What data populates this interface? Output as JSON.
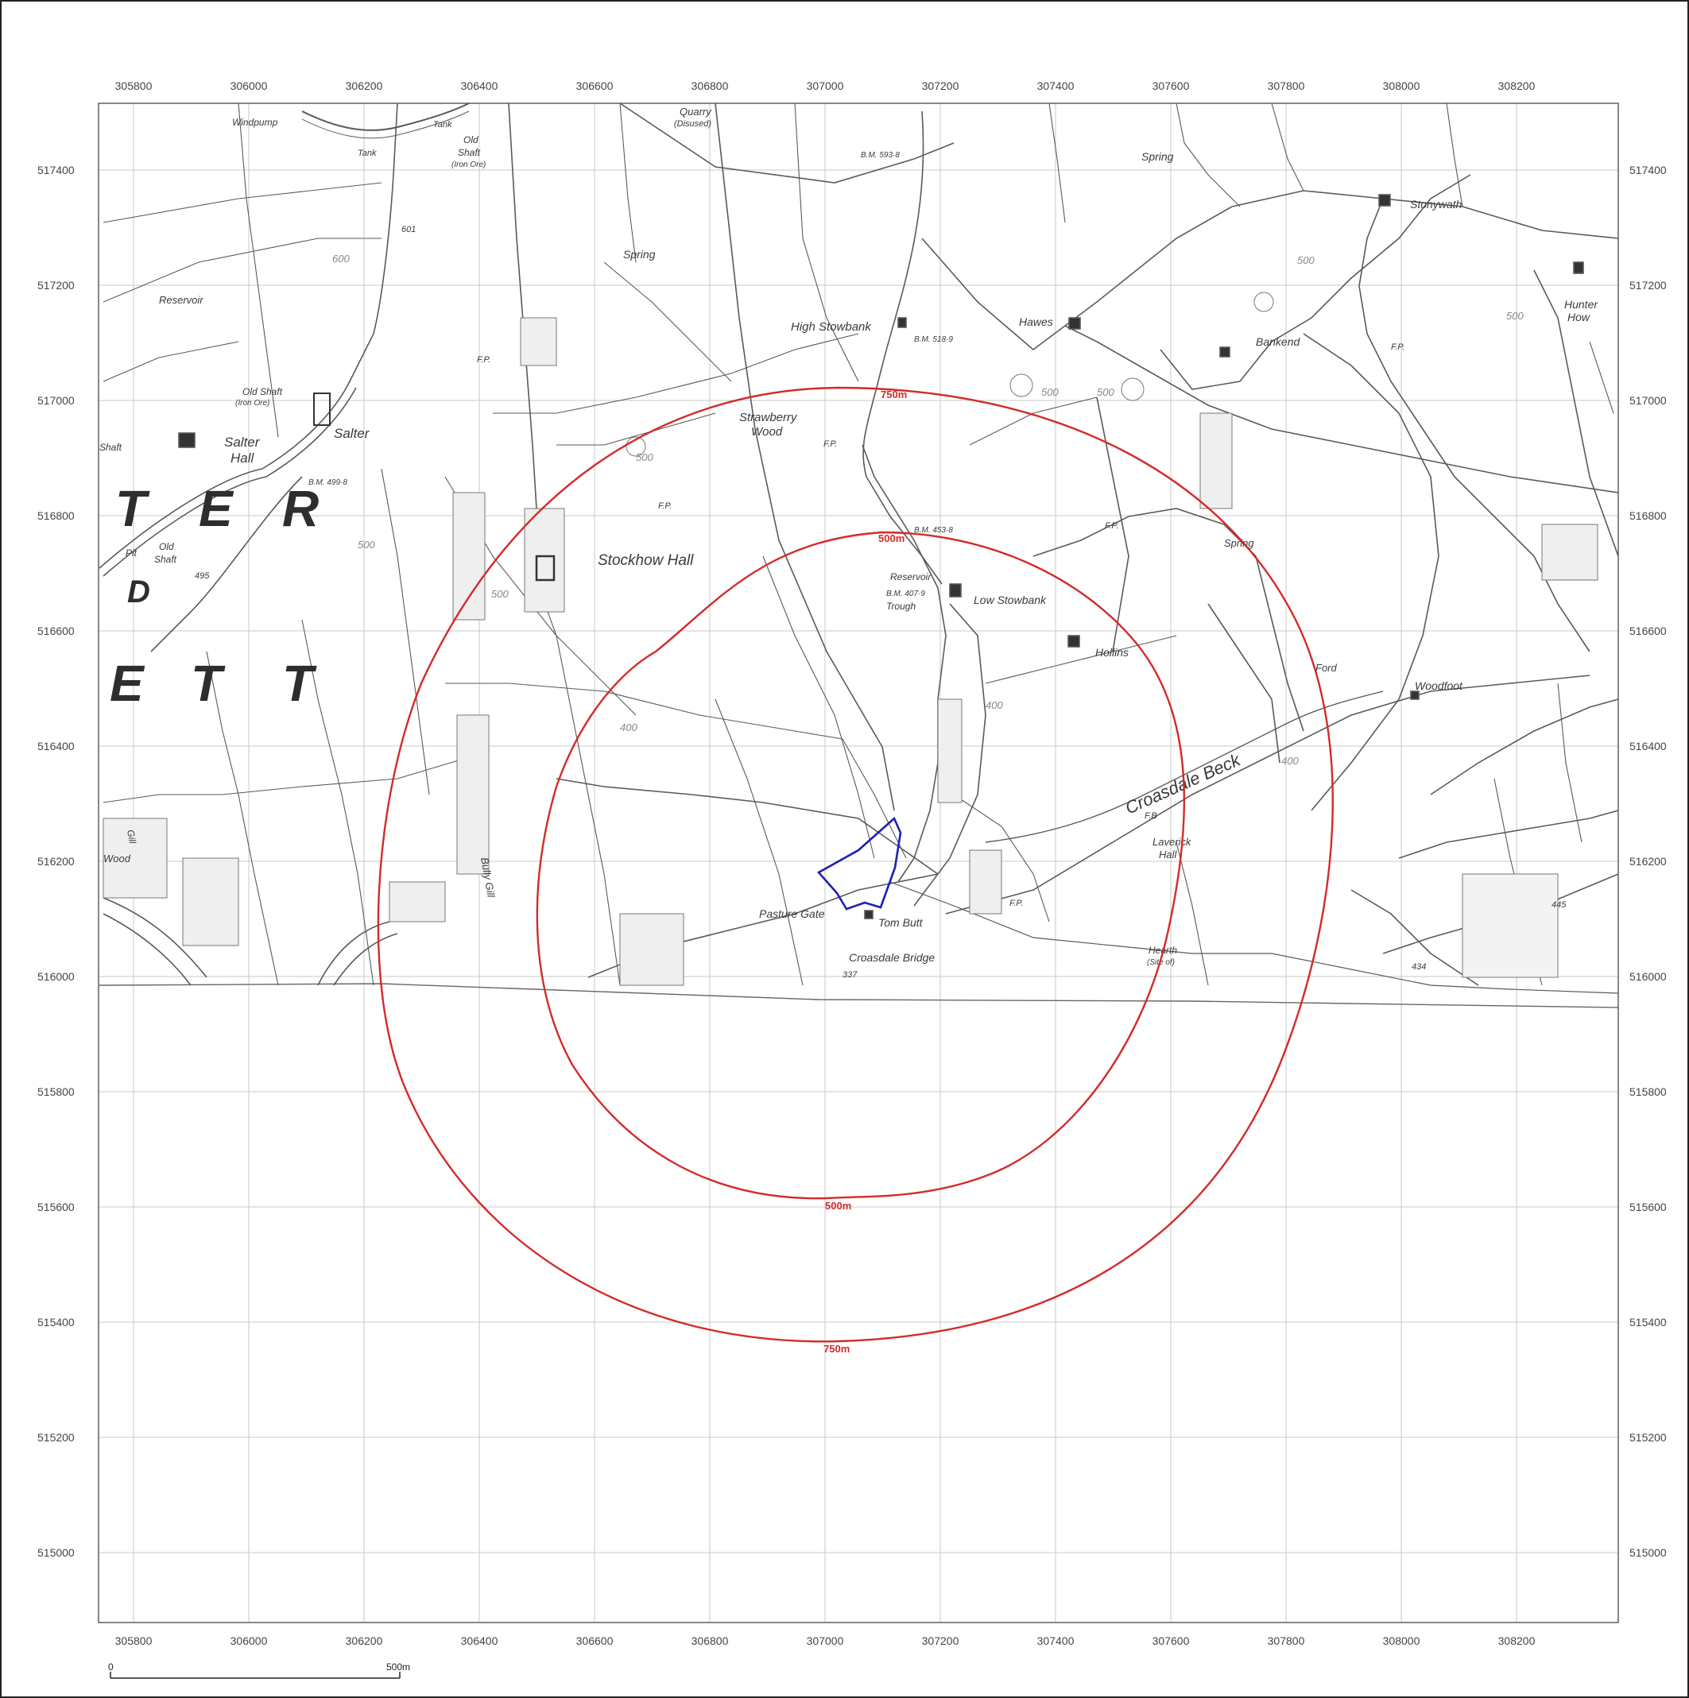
{
  "map": {
    "colors": {
      "grid": "#c8c8c8",
      "map_ink": "#5a5a5a",
      "buffer": "#d42a2a",
      "site_boundary": "#1f1fb4"
    },
    "eastings": [
      "305800",
      "306000",
      "306200",
      "306400",
      "306600",
      "306800",
      "307000",
      "307200",
      "307400",
      "307600",
      "307800",
      "308000",
      "308200"
    ],
    "northings": [
      "517400",
      "517200",
      "517000",
      "516800",
      "516600",
      "516400",
      "516200",
      "516000",
      "515800",
      "515600",
      "515400",
      "515200",
      "515000"
    ],
    "buffers": [
      {
        "label": "500m",
        "label_bottom": "500m",
        "radius_m": 500
      },
      {
        "label": "750m",
        "label_bottom": "750m",
        "radius_m": 750
      }
    ],
    "site": {
      "name": "site-boundary"
    },
    "scale_bar": {
      "start": "0",
      "end": "500m"
    },
    "place_labels": [
      {
        "key": "stockhow_hall",
        "text": "Stockhow Hall"
      },
      {
        "key": "low_stowbank",
        "text": "Low Stowbank"
      },
      {
        "key": "high_stowbank",
        "text": "High Stowbank"
      },
      {
        "key": "hawes",
        "text": "Hawes"
      },
      {
        "key": "bankend",
        "text": "Bankend"
      },
      {
        "key": "stonywath",
        "text": "Stonywath"
      },
      {
        "key": "hunter_how_1",
        "text": "Hunter"
      },
      {
        "key": "hunter_how_2",
        "text": "How"
      },
      {
        "key": "strawberry_1",
        "text": "Strawberry"
      },
      {
        "key": "strawberry_2",
        "text": "Wood"
      },
      {
        "key": "salter",
        "text": "Salter"
      },
      {
        "key": "salter_hall_1",
        "text": "Salter"
      },
      {
        "key": "salter_hall_2",
        "text": "Hall"
      },
      {
        "key": "hollins",
        "text": "Hollins"
      },
      {
        "key": "woodfoot",
        "text": "Woodfoot"
      },
      {
        "key": "ford",
        "text": "Ford"
      },
      {
        "key": "pasture_gate",
        "text": "Pasture Gate"
      },
      {
        "key": "tom_butt",
        "text": "Tom Butt"
      },
      {
        "key": "croasdale_bridge",
        "text": "Croasdale Bridge"
      },
      {
        "key": "croasdale_beck",
        "text": "Croasdale Beck"
      },
      {
        "key": "laverick_1",
        "text": "Laverick"
      },
      {
        "key": "laverick_2",
        "text": "Hall"
      },
      {
        "key": "spring_1",
        "text": "Spring"
      },
      {
        "key": "spring_2",
        "text": "Spring"
      },
      {
        "key": "spring_3",
        "text": "Spring"
      },
      {
        "key": "reservoir_1",
        "text": "Reservoir"
      },
      {
        "key": "reservoir_2",
        "text": "Reservoir"
      },
      {
        "key": "trough",
        "text": "Trough"
      },
      {
        "key": "quarry_1",
        "text": "Quarry"
      },
      {
        "key": "quarry_2",
        "text": "(Disused)"
      },
      {
        "key": "windpump",
        "text": "Windpump"
      },
      {
        "key": "tank_1",
        "text": "Tank"
      },
      {
        "key": "tank_2",
        "text": "Tank"
      },
      {
        "key": "old_shaft_1",
        "text": "Old"
      },
      {
        "key": "old_shaft_2",
        "text": "Shaft"
      },
      {
        "key": "old_shaft_3",
        "text": "(Iron Ore)"
      },
      {
        "key": "old_shaft_4",
        "text": "Old Shaft"
      },
      {
        "key": "old_shaft_5",
        "text": "(Iron Ore)"
      },
      {
        "key": "old_shaft_6",
        "text": "Old"
      },
      {
        "key": "old_shaft_7",
        "text": "Shaft"
      },
      {
        "key": "shaft",
        "text": "Shaft"
      },
      {
        "key": "bm_5938",
        "text": "B.M. 593·8"
      },
      {
        "key": "bm_5189",
        "text": "B.M. 518·9"
      },
      {
        "key": "bm_4538",
        "text": "B.M. 453·8"
      },
      {
        "key": "bm_4079",
        "text": "B.M. 407·9"
      },
      {
        "key": "bm_4998",
        "text": "B.M. 499·8"
      },
      {
        "key": "hearth_1",
        "text": "Hearth"
      },
      {
        "key": "hearth_2",
        "text": "(Site of)"
      },
      {
        "key": "fb",
        "text": "F.B"
      },
      {
        "key": "fp_1",
        "text": "F.P."
      },
      {
        "key": "fp_2",
        "text": "F.P."
      },
      {
        "key": "fp_3",
        "text": "F.P."
      },
      {
        "key": "fp_4",
        "text": "F.P."
      },
      {
        "key": "fp_5",
        "text": "F.P."
      },
      {
        "key": "fp_6",
        "text": "F.P."
      },
      {
        "key": "sp_337",
        "text": "337"
      },
      {
        "key": "sp_495",
        "text": "495"
      },
      {
        "key": "sp_445",
        "text": "445"
      },
      {
        "key": "sp_434",
        "text": "434"
      },
      {
        "key": "sp_601",
        "text": "601"
      },
      {
        "key": "ct_600",
        "text": "600"
      },
      {
        "key": "ct_500a",
        "text": "500"
      },
      {
        "key": "ct_500b",
        "text": "500"
      },
      {
        "key": "ct_500c",
        "text": "500"
      },
      {
        "key": "ct_500d",
        "text": "500"
      },
      {
        "key": "ct_500e",
        "text": "500"
      },
      {
        "key": "ct_500f",
        "text": "500"
      },
      {
        "key": "ct_500g",
        "text": "500"
      },
      {
        "key": "ct_400a",
        "text": "400"
      },
      {
        "key": "ct_400b",
        "text": "400"
      },
      {
        "key": "ct_400c",
        "text": "400"
      },
      {
        "key": "bully_gill",
        "text": "Bully Gill"
      },
      {
        "key": "gill_w",
        "text": "Gill"
      },
      {
        "key": "wood_w",
        "text": "Wood"
      },
      {
        "key": "pit_w",
        "text": "Pit"
      }
    ],
    "big_letters": [
      "T",
      "E",
      "R",
      "D",
      "E",
      "T",
      "T"
    ]
  }
}
